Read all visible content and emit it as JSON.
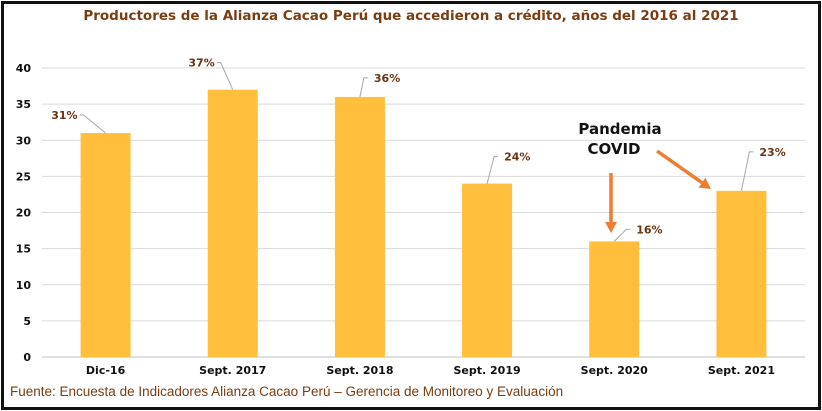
{
  "chart_data": {
    "type": "bar",
    "title": "Productores de la Alianza Cacao Perú que accedieron a crédito, años del 2016 al 2021",
    "categories": [
      "Dic-16",
      "Sept. 2017",
      "Sept. 2018",
      "Sept. 2019",
      "Sept. 2020",
      "Sept. 2021"
    ],
    "values": [
      31,
      37,
      36,
      24,
      16,
      23
    ],
    "data_labels": [
      "31%",
      "37%",
      "36%",
      "24%",
      "16%",
      "23%"
    ],
    "yticks": [
      0,
      5,
      10,
      15,
      20,
      25,
      30,
      35,
      40
    ],
    "ylim": [
      0,
      40
    ],
    "xlabel": "",
    "ylabel": "",
    "grid": true,
    "legend": "none",
    "bar_color": "#FFBF3C",
    "annotation": {
      "lines": [
        "Pandemia",
        "COVID"
      ],
      "arrow_color": "#ED7D31"
    },
    "source": "Fuente: Encuesta de Indicadores Alianza Cacao Perú – Gerencia de Monitoreo y Evaluación"
  }
}
